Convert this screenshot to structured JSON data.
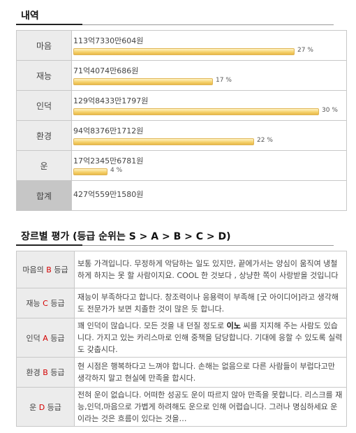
{
  "section1": {
    "title": "내역"
  },
  "breakdown": [
    {
      "label": "마음",
      "amount": "113억7330만604원",
      "percent": 27,
      "percent_text": "27 %"
    },
    {
      "label": "재능",
      "amount": "71억4074만686원",
      "percent": 17,
      "percent_text": "17 %"
    },
    {
      "label": "인덕",
      "amount": "129억8433만1797원",
      "percent": 30,
      "percent_text": "30 %"
    },
    {
      "label": "환경",
      "amount": "94억8376만1712원",
      "percent": 22,
      "percent_text": "22 %"
    },
    {
      "label": "운",
      "amount": "17억2345만6781원",
      "percent": 4,
      "percent_text": "4 %"
    }
  ],
  "total": {
    "label": "합계",
    "amount": "427억559만1580원"
  },
  "section2": {
    "title": "장르별 평가 (등급 순위는 S > A > B > C > D)"
  },
  "grades": [
    {
      "category": "마음의",
      "grade": "B",
      "suffix": "등급",
      "text": "보통 가격입니다. 무정하게 악담하는 일도 있지만, 끝에가서는 양심이 움직여 냉철하게 하지는 못 할 사람이지요. COOL 한 것보다 , 상냥한 쪽이 사랑받을 것입니다"
    },
    {
      "category": "재능",
      "grade": "C",
      "suffix": "등급",
      "text": "재능이 부족하다고 합니다. 창조력이나 응용력이 부족해 [굿 아이디어]라고 생각해도 전문가가 보면 치졸한 것이 많은 듯 합니다."
    },
    {
      "category": "인덕",
      "grade": "A",
      "suffix": "등급",
      "text_before": "꽤 인덕이 많습니다. 모든 것을 내 던질 정도로 ",
      "text_bold": "이노",
      "text_after": " 씨를 지지해 주는 사람도 있습니다. 가지고 있는 카리스마로 인해 중책을 담당합니다. 기대에 응할 수 있도록 실력도 갖춥시다."
    },
    {
      "category": "환경",
      "grade": "B",
      "suffix": "등급",
      "text": "현 시점은 행복하다고 느껴야 합니다. 손해는 없음으로 다른 사람들이 부럽다고만 생각하지 말고 현실에 만족을 합시다."
    },
    {
      "category": "운",
      "grade": "D",
      "suffix": "등급",
      "text": "전혀 운이 없습니다. 어떠한 성공도 운이 따르지 않아 만족을 못합니다. 리스크를 재능,인덕,마음으로 가볍게 하려해도 운으로 인해 어렵습니다. 그러나 명심하세요 운이라는 것은 흐름이 있다는 것을…"
    }
  ],
  "colors": {
    "grade_letter": "#d40000",
    "bar": "#f4cf67",
    "label_bg": "#ececec",
    "total_bg": "#c6c6c6"
  }
}
